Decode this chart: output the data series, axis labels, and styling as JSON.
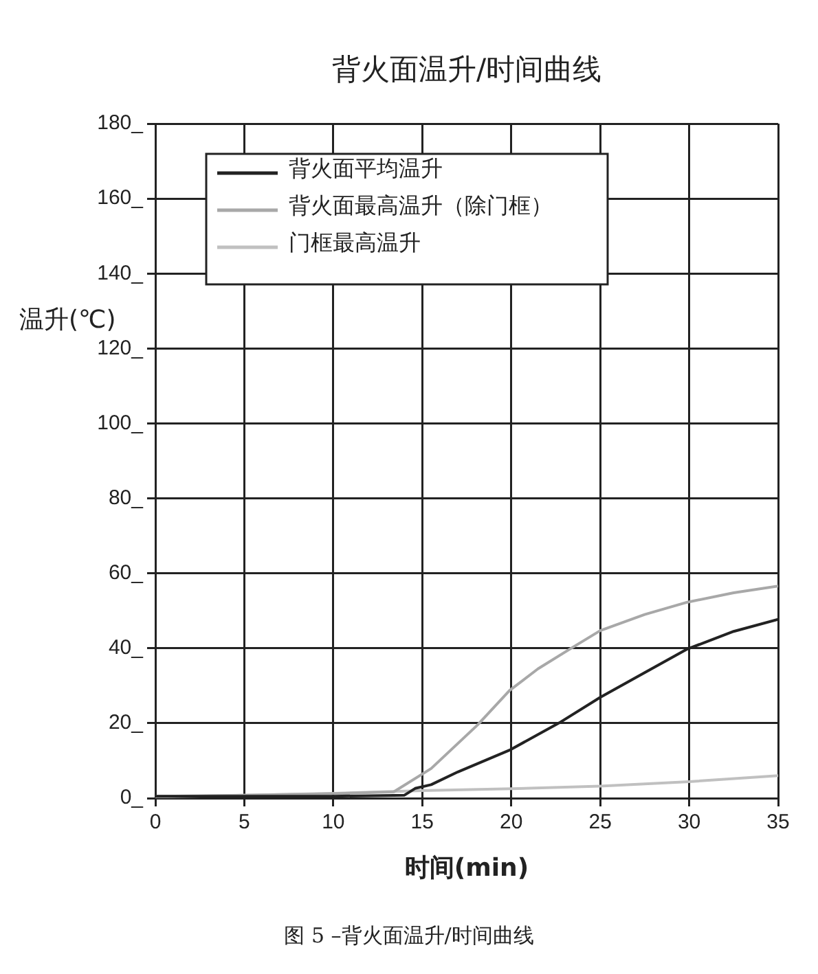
{
  "chart_data": {
    "type": "line",
    "title": "背火面温升/时间曲线",
    "xlabel": "时间(min)",
    "ylabel": "温升(℃)",
    "annotations": [
      "图 5 –背火面温升/时间曲线"
    ],
    "xlim": [
      0,
      35
    ],
    "xticks": [
      0,
      5,
      10,
      15,
      20,
      25,
      30,
      35
    ],
    "ylim": [
      0,
      180
    ],
    "yticks": [
      {
        "value": 0,
        "label": "0_"
      },
      {
        "value": 20,
        "label": "20_"
      },
      {
        "value": 40,
        "label": "40_"
      },
      {
        "value": 60,
        "label": "60_"
      },
      {
        "value": 80,
        "label": "80_"
      },
      {
        "value": 100,
        "label": "100_"
      },
      {
        "value": 120,
        "label": "120_"
      },
      {
        "value": 140,
        "label": "140_"
      },
      {
        "value": 160,
        "label": "160_"
      },
      {
        "value": 180,
        "label": "180_"
      }
    ],
    "grid": true,
    "legend": "top left",
    "marker": "none",
    "line_style": "solid",
    "series": [
      {
        "name": "背火面平均温升",
        "color": "#222222",
        "x": [
          0,
          5,
          10,
          14,
          14.6,
          15.5,
          17,
          19.9,
          22.7,
          25,
          27.5,
          29.9,
          32.5,
          35
        ],
        "values": [
          0.5,
          0.5,
          0.5,
          0.8,
          2.6,
          3.6,
          7,
          12.8,
          20.1,
          26.9,
          33.5,
          39.8,
          44.5,
          47.7
        ]
      },
      {
        "name": "背火面最高温升（除门框）",
        "color": "#a8a8a8",
        "x": [
          0,
          5,
          10,
          13.4,
          15.5,
          18.1,
          19.9,
          21.5,
          23.3,
          25,
          27.5,
          29.9,
          32.5,
          35
        ],
        "values": [
          0.5,
          0.8,
          1.2,
          1.7,
          7.9,
          19.5,
          28.7,
          34.5,
          39.8,
          44.7,
          49,
          52.3,
          54.8,
          56.6
        ]
      },
      {
        "name": "门框最高温升",
        "color": "#c0c0c0",
        "x": [
          0,
          5,
          10,
          15,
          20,
          25,
          30,
          35
        ],
        "values": [
          0.3,
          0.8,
          1.3,
          2,
          2.5,
          3.2,
          4.4,
          6
        ]
      }
    ]
  }
}
